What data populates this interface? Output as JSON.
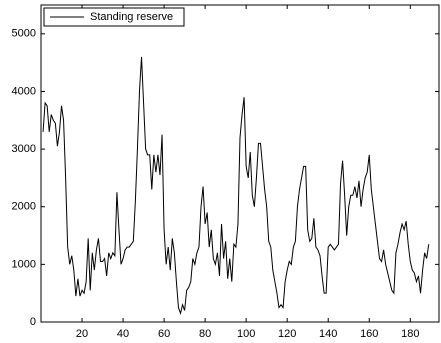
{
  "chart_data": {
    "type": "line",
    "x": [
      1,
      2,
      3,
      4,
      5,
      6,
      7,
      8,
      9,
      10,
      11,
      12,
      13,
      14,
      15,
      16,
      17,
      18,
      19,
      20,
      21,
      22,
      23,
      24,
      25,
      26,
      27,
      28,
      29,
      30,
      31,
      32,
      33,
      34,
      35,
      36,
      37,
      38,
      39,
      40,
      41,
      42,
      43,
      44,
      45,
      46,
      47,
      48,
      49,
      50,
      51,
      52,
      53,
      54,
      55,
      56,
      57,
      58,
      59,
      60,
      61,
      62,
      63,
      64,
      65,
      66,
      67,
      68,
      69,
      70,
      71,
      72,
      73,
      74,
      75,
      76,
      77,
      78,
      79,
      80,
      81,
      82,
      83,
      84,
      85,
      86,
      87,
      88,
      89,
      90,
      91,
      92,
      93,
      94,
      95,
      96,
      97,
      98,
      99,
      100,
      101,
      102,
      103,
      104,
      105,
      106,
      107,
      108,
      109,
      110,
      111,
      112,
      113,
      114,
      115,
      116,
      117,
      118,
      119,
      120,
      121,
      122,
      123,
      124,
      125,
      126,
      127,
      128,
      129,
      130,
      131,
      132,
      133,
      134,
      135,
      136,
      137,
      138,
      139,
      140,
      141,
      142,
      143,
      144,
      145,
      146,
      147,
      148,
      149,
      150,
      151,
      152,
      153,
      154,
      155,
      156,
      157,
      158,
      159,
      160,
      161,
      162,
      163,
      164,
      165,
      166,
      167,
      168,
      169,
      170,
      171,
      172,
      173,
      174,
      175,
      176,
      177,
      178,
      179,
      180,
      181,
      182,
      183,
      184,
      185,
      186,
      187,
      188,
      189
    ],
    "series": [
      {
        "name": "Standing reserve",
        "color": "#000000",
        "values": [
          3300,
          3800,
          3750,
          3300,
          3600,
          3500,
          3450,
          3050,
          3300,
          3750,
          3500,
          2500,
          1300,
          1000,
          1150,
          900,
          450,
          750,
          450,
          550,
          500,
          700,
          1450,
          550,
          1200,
          900,
          1250,
          1450,
          1050,
          1050,
          1100,
          800,
          1200,
          1100,
          1200,
          1150,
          2250,
          1600,
          1000,
          1100,
          1250,
          1300,
          1300,
          1350,
          1400,
          2100,
          3000,
          4000,
          4600,
          3800,
          3000,
          2900,
          2900,
          2300,
          2900,
          2600,
          2900,
          2550,
          3250,
          1600,
          1000,
          1300,
          900,
          1450,
          1200,
          700,
          250,
          150,
          300,
          200,
          550,
          600,
          700,
          1100,
          1000,
          1200,
          1300,
          2000,
          2350,
          1700,
          1900,
          1300,
          1600,
          1100,
          1000,
          1200,
          800,
          1700,
          1100,
          1400,
          750,
          1100,
          700,
          1350,
          1300,
          1700,
          3200,
          3600,
          3900,
          2700,
          2500,
          2950,
          2200,
          2000,
          2500,
          3100,
          3100,
          2700,
          2300,
          2000,
          1400,
          1300,
          900,
          700,
          500,
          250,
          300,
          250,
          700,
          900,
          1050,
          1000,
          1300,
          1400,
          2000,
          2300,
          2500,
          2700,
          2700,
          1600,
          1400,
          1450,
          1800,
          1300,
          1250,
          1150,
          800,
          500,
          500,
          1300,
          1350,
          1300,
          1250,
          1300,
          1350,
          2400,
          2800,
          2200,
          1500,
          2000,
          2200,
          2200,
          2350,
          2150,
          2450,
          2000,
          2300,
          2500,
          2600,
          2900,
          2300,
          2000,
          1700,
          1400,
          1100,
          1050,
          1250,
          1000,
          850,
          700,
          550,
          500,
          1200,
          1350,
          1550,
          1700,
          1600,
          1750,
          1350,
          1050,
          900,
          850,
          700,
          800,
          500,
          900,
          1200,
          1100,
          1350
        ]
      }
    ],
    "xlim": [
      0,
      194
    ],
    "ylim": [
      0,
      5500
    ],
    "xticks": [
      20,
      40,
      60,
      80,
      100,
      120,
      140,
      160,
      180
    ],
    "yticks": [
      0,
      1000,
      2000,
      3000,
      4000,
      5000
    ],
    "legend": "upper-left"
  }
}
